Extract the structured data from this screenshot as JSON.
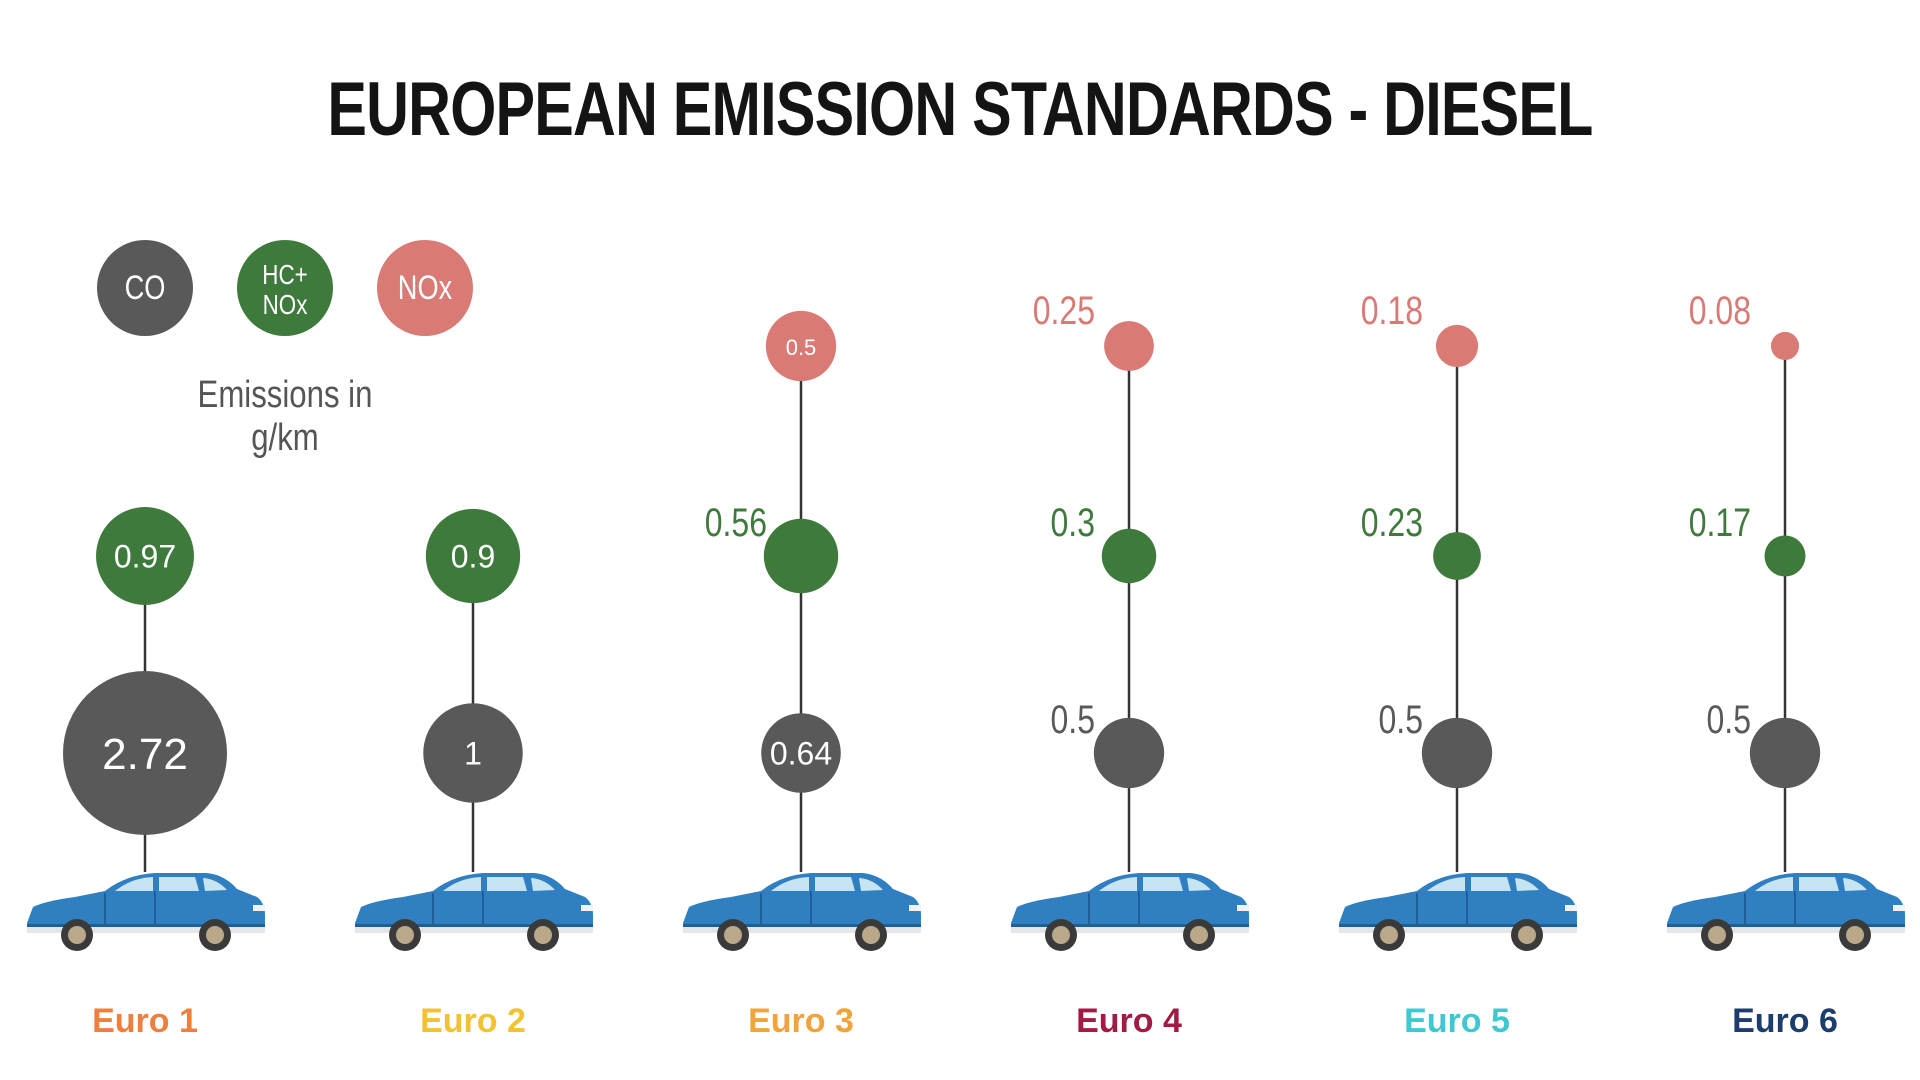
{
  "title": "EUROPEAN EMISSION STANDARDS - DIESEL",
  "legend": {
    "caption": "Emissions in g/km",
    "items": [
      {
        "key": "co",
        "label_lines": [
          "CO"
        ],
        "color": "#595959"
      },
      {
        "key": "hc_nox",
        "label_lines": [
          "HC+",
          "NOx"
        ],
        "color": "#3f7a3d"
      },
      {
        "key": "nox",
        "label_lines": [
          "NOx"
        ],
        "color": "#d97a75"
      }
    ]
  },
  "colors": {
    "co": "#595959",
    "hc_nox": "#3f7a3d",
    "nox": "#d97a75",
    "stem": "#333333",
    "car_body": "#2f7fc1"
  },
  "chart_data": {
    "type": "scatter",
    "title": "EUROPEAN EMISSION STANDARDS - DIESEL",
    "unit": "g/km",
    "categories": [
      "Euro 1",
      "Euro 2",
      "Euro 3",
      "Euro 4",
      "Euro 5",
      "Euro 6"
    ],
    "category_colors": [
      "#f07f3c",
      "#f2c230",
      "#f2a33a",
      "#a31b45",
      "#3ec9d1",
      "#1c3d6e"
    ],
    "series": [
      {
        "name": "CO",
        "key": "co",
        "values": [
          2.72,
          1,
          0.64,
          0.5,
          0.5,
          0.5
        ]
      },
      {
        "name": "HC+NOx",
        "key": "hc_nox",
        "values": [
          0.97,
          0.9,
          0.56,
          0.3,
          0.23,
          0.17
        ]
      },
      {
        "name": "NOx",
        "key": "nox",
        "values": [
          null,
          null,
          0.5,
          0.25,
          0.18,
          0.08
        ]
      }
    ],
    "value_labels": [
      [
        "2.72",
        "1",
        "0.64",
        "0.5",
        "0.5",
        "0.5"
      ],
      [
        "0.97",
        "0.9",
        "0.56",
        "0.3",
        "0.23",
        "0.17"
      ],
      [
        "",
        "",
        "0.5",
        "0.25",
        "0.18",
        "0.08"
      ]
    ],
    "encoding": "bubble area proportional to value"
  }
}
